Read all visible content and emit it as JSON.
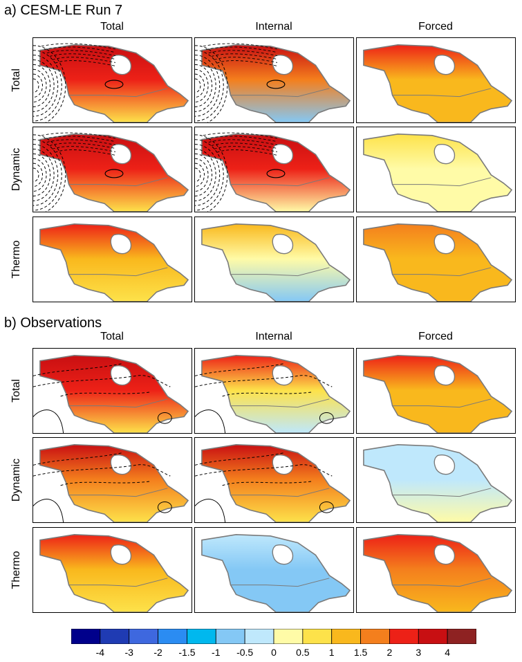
{
  "sections": [
    {
      "title": "a) CESM-LE Run 7",
      "columns": [
        "Total",
        "Internal",
        "Forced"
      ],
      "rows": [
        {
          "label": "Total",
          "panels": [
            {
              "mean": 2.6,
              "north": 3.4,
              "south": 0.9,
              "contours": "strong"
            },
            {
              "mean": 1.5,
              "north": 3.0,
              "south": -0.7,
              "contours": "strong"
            },
            {
              "mean": 1.4,
              "north": 2.4,
              "south": 1.1,
              "contours": "none"
            }
          ]
        },
        {
          "label": "Dynamic",
          "panels": [
            {
              "mean": 2.2,
              "north": 3.5,
              "south": 0.5,
              "contours": "strong"
            },
            {
              "mean": 2.0,
              "north": 3.4,
              "south": 0.4,
              "contours": "strong"
            },
            {
              "mean": 0.3,
              "north": 0.6,
              "south": 0.2,
              "contours": "none"
            }
          ]
        },
        {
          "label": "Thermo",
          "panels": [
            {
              "mean": 1.3,
              "north": 2.2,
              "south": 0.6,
              "contours": "none"
            },
            {
              "mean": 0.3,
              "north": 1.0,
              "south": -0.6,
              "contours": "none"
            },
            {
              "mean": 1.1,
              "north": 1.8,
              "south": 1.0,
              "contours": "none"
            }
          ]
        }
      ]
    },
    {
      "title": "b) Observations",
      "columns": [
        "Total",
        "Internal",
        "Forced"
      ],
      "rows": [
        {
          "label": "Total",
          "panels": [
            {
              "mean": 2.1,
              "north": 3.1,
              "south": 0.9,
              "contours": "weak"
            },
            {
              "mean": 0.8,
              "north": 2.6,
              "south": -0.5,
              "contours": "weak"
            },
            {
              "mean": 1.4,
              "north": 2.5,
              "south": 1.2,
              "contours": "none"
            }
          ]
        },
        {
          "label": "Dynamic",
          "panels": [
            {
              "mean": 1.6,
              "north": 3.1,
              "south": 0.6,
              "contours": "weak"
            },
            {
              "mean": 1.5,
              "north": 3.2,
              "south": 0.5,
              "contours": "weak"
            },
            {
              "mean": -0.2,
              "north": -0.3,
              "south": 0.0,
              "contours": "none"
            }
          ]
        },
        {
          "label": "Thermo",
          "panels": [
            {
              "mean": 1.3,
              "north": 2.0,
              "south": 0.9,
              "contours": "none"
            },
            {
              "mean": -0.6,
              "north": -0.4,
              "south": -0.9,
              "contours": "none"
            },
            {
              "mean": 1.7,
              "north": 2.7,
              "south": 1.3,
              "contours": "none"
            }
          ]
        }
      ]
    }
  ],
  "chart_data": {
    "type": "heatmap",
    "description_units": "temperature trend",
    "legend": {
      "tick_labels": [
        "-4",
        "-3",
        "-2",
        "-1.5",
        "-1",
        "-0.5",
        "0",
        "0.5",
        "1",
        "1.5",
        "2",
        "3",
        "4"
      ],
      "colors": [
        "#00008b",
        "#1f3bb3",
        "#3e68df",
        "#2b8cf2",
        "#00b8ee",
        "#84c8f5",
        "#bfe8fc",
        "#fffba7",
        "#fde24a",
        "#f9b81d",
        "#f47f1d",
        "#ed2117",
        "#c80f12",
        "#8e2222"
      ]
    }
  }
}
